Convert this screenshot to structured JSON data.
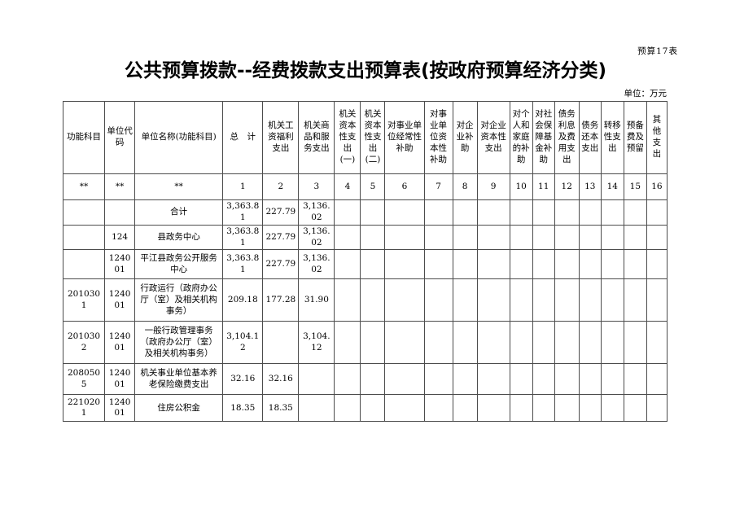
{
  "page": {
    "sheet_label": "预算17表",
    "title": "公共预算拨款--经费拨款支出预算表(按政府预算经济分类)",
    "unit_note": "单位：万元"
  },
  "table": {
    "headers": [
      "功能科目",
      "单位代码",
      "单位名称(功能科目)",
      "总　计",
      "机关工资福利支出",
      "机关商品和服务支出",
      "机关资本性支出(一)",
      "机关资本性支出(二)",
      "对事业单位经常性补助",
      "对事业单位资本性补助",
      "对企业补助",
      "对企业资本性支出",
      "对个人和家庭的补助",
      "对社会保障基金补助",
      "债务利息及费用支出",
      "债务还本支出",
      "转移性支出",
      "预备费及预留",
      "其他支出"
    ],
    "code_row": [
      "**",
      "**",
      "**",
      "1",
      "2",
      "3",
      "4",
      "5",
      "6",
      "7",
      "8",
      "9",
      "10",
      "11",
      "12",
      "13",
      "14",
      "15",
      "16"
    ],
    "rows": [
      [
        "",
        "",
        "合计",
        "3,363.81",
        "227.79",
        "3,136.02",
        "",
        "",
        "",
        "",
        "",
        "",
        "",
        "",
        "",
        "",
        "",
        "",
        ""
      ],
      [
        "",
        "124",
        "县政务中心",
        "3,363.81",
        "227.79",
        "3,136.02",
        "",
        "",
        "",
        "",
        "",
        "",
        "",
        "",
        "",
        "",
        "",
        "",
        ""
      ],
      [
        "",
        "124001",
        "平江县政务公开服务中心",
        "3,363.81",
        "227.79",
        "3,136.02",
        "",
        "",
        "",
        "",
        "",
        "",
        "",
        "",
        "",
        "",
        "",
        "",
        ""
      ],
      [
        "2010301",
        "124001",
        "行政运行（政府办公厅（室）及相关机构事务）",
        "209.18",
        "177.28",
        "31.90",
        "",
        "",
        "",
        "",
        "",
        "",
        "",
        "",
        "",
        "",
        "",
        "",
        ""
      ],
      [
        "2010302",
        "124001",
        "一般行政管理事务（政府办公厅（室）及相关机构事务）",
        "3,104.12",
        "",
        "3,104.12",
        "",
        "",
        "",
        "",
        "",
        "",
        "",
        "",
        "",
        "",
        "",
        "",
        ""
      ],
      [
        "2080505",
        "124001",
        "机关事业单位基本养老保险缴费支出",
        "32.16",
        "32.16",
        "",
        "",
        "",
        "",
        "",
        "",
        "",
        "",
        "",
        "",
        "",
        "",
        "",
        ""
      ],
      [
        "2210201",
        "124001",
        "住房公积金",
        "18.35",
        "18.35",
        "",
        "",
        "",
        "",
        "",
        "",
        "",
        "",
        "",
        "",
        "",
        "",
        "",
        ""
      ]
    ]
  }
}
